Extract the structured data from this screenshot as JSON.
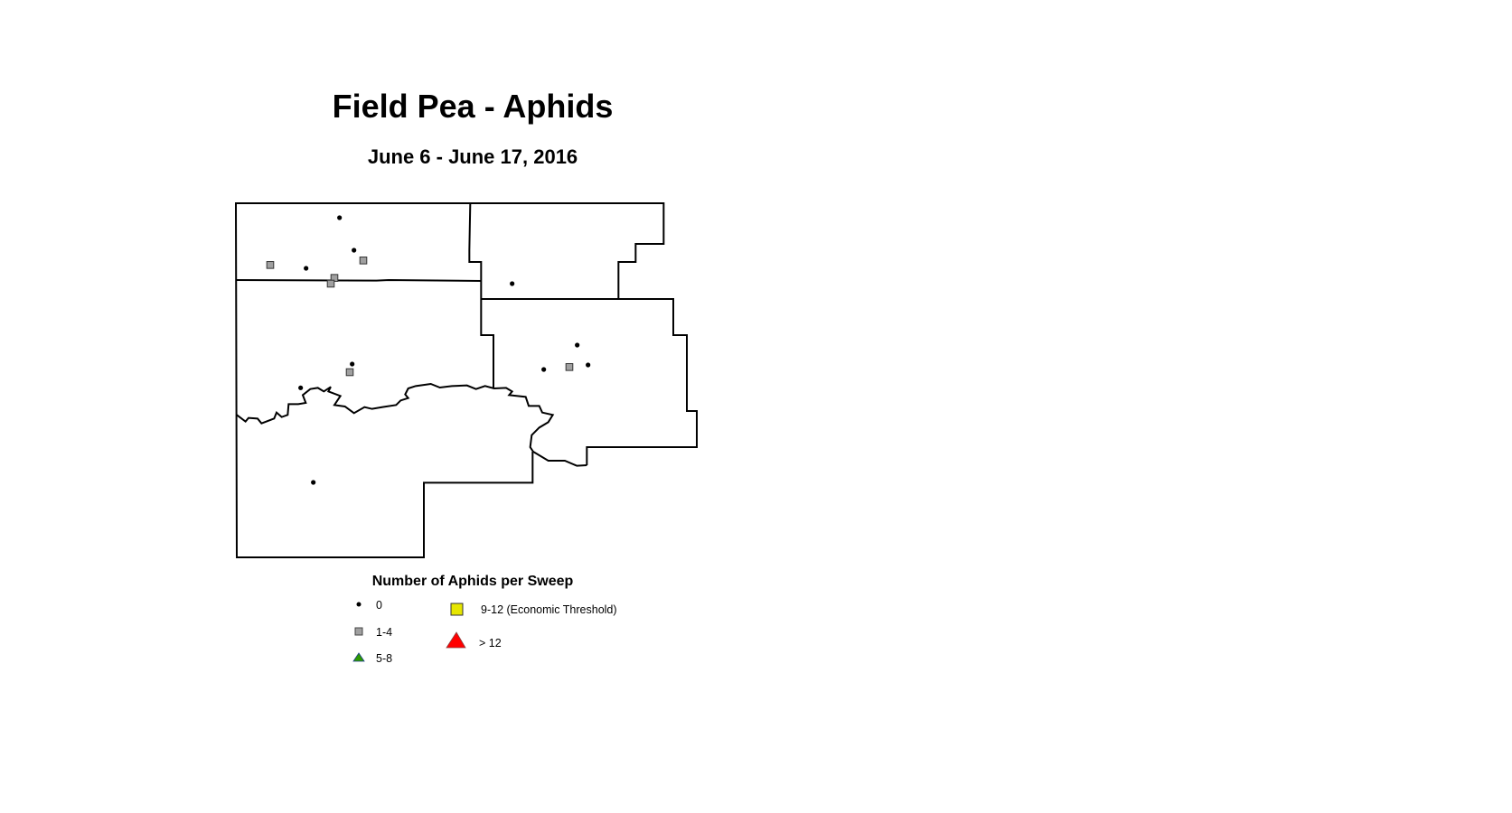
{
  "title": "Field Pea - Aphids",
  "subtitle": "June 6 - June 17, 2016",
  "legend": {
    "title": "Number of Aphids per Sweep",
    "items": [
      {
        "label": "0",
        "symbol": "dot",
        "color": "#000000"
      },
      {
        "label": "1-4",
        "symbol": "square",
        "color": "#a0a0a0"
      },
      {
        "label": "5-8",
        "symbol": "triangle",
        "color": "#2e9a00"
      },
      {
        "label": "9-12 (Economic Threshold)",
        "symbol": "square",
        "color": "#e6e600"
      },
      {
        "label": "> 12",
        "symbol": "triangle",
        "color": "#ff0000"
      }
    ]
  }
}
